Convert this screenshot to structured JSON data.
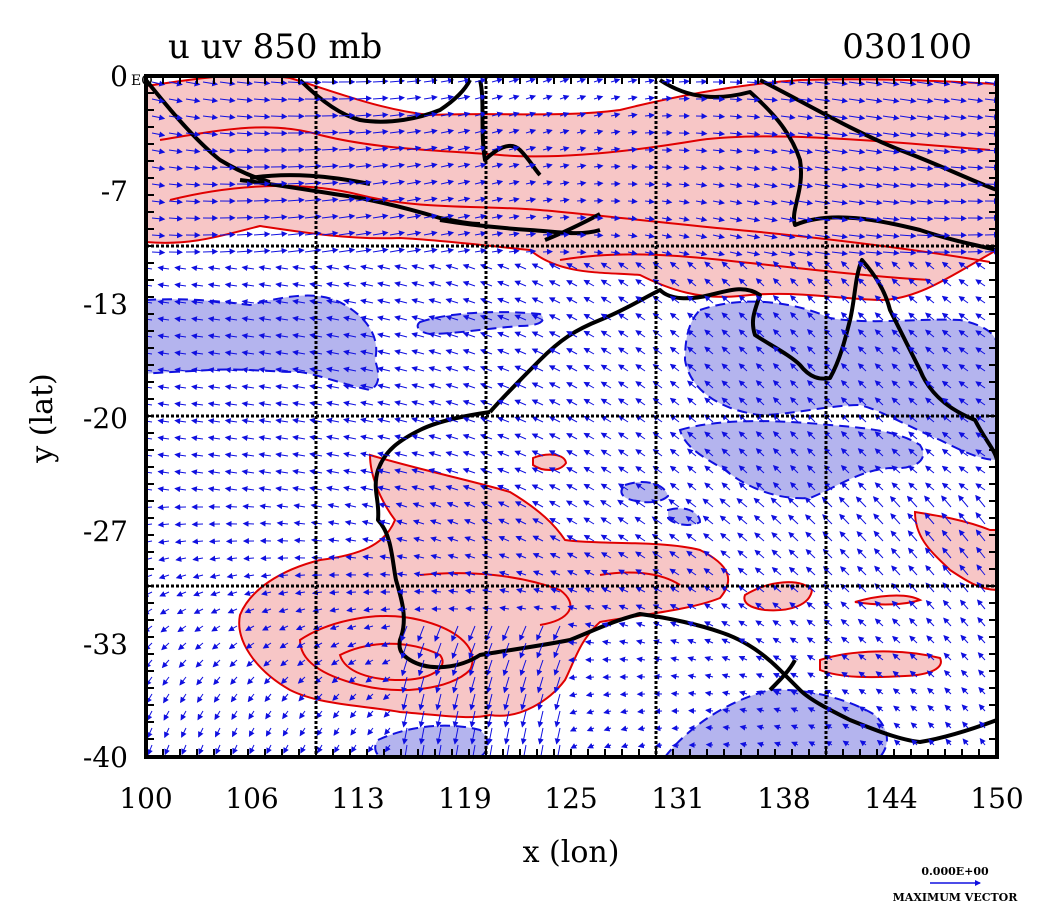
{
  "header": {
    "title": "u uv 850 mb",
    "date": "030100"
  },
  "map": {
    "lon_range": [
      100,
      150
    ],
    "lat_range": [
      -40,
      0
    ],
    "x_label": "x (lon)",
    "y_label": "y (lat)",
    "x_ticks": [
      "100",
      "106",
      "113",
      "119",
      "125",
      "131",
      "138",
      "144",
      "150"
    ],
    "y_ticks": [
      "0",
      "-7",
      "-13",
      "-20",
      "-27",
      "-33",
      "-40"
    ],
    "eq_label": "EQ",
    "colors": {
      "positive_fill": "#f7c6c6",
      "positive_line": "#e00000",
      "negative_fill": "#b4b4ee",
      "negative_line": "#1010e0",
      "vector": "#1010e0",
      "coast": "#000000"
    }
  },
  "legend": {
    "scale_value": "0.000E+00",
    "caption": "MAXIMUM VECTOR"
  }
}
